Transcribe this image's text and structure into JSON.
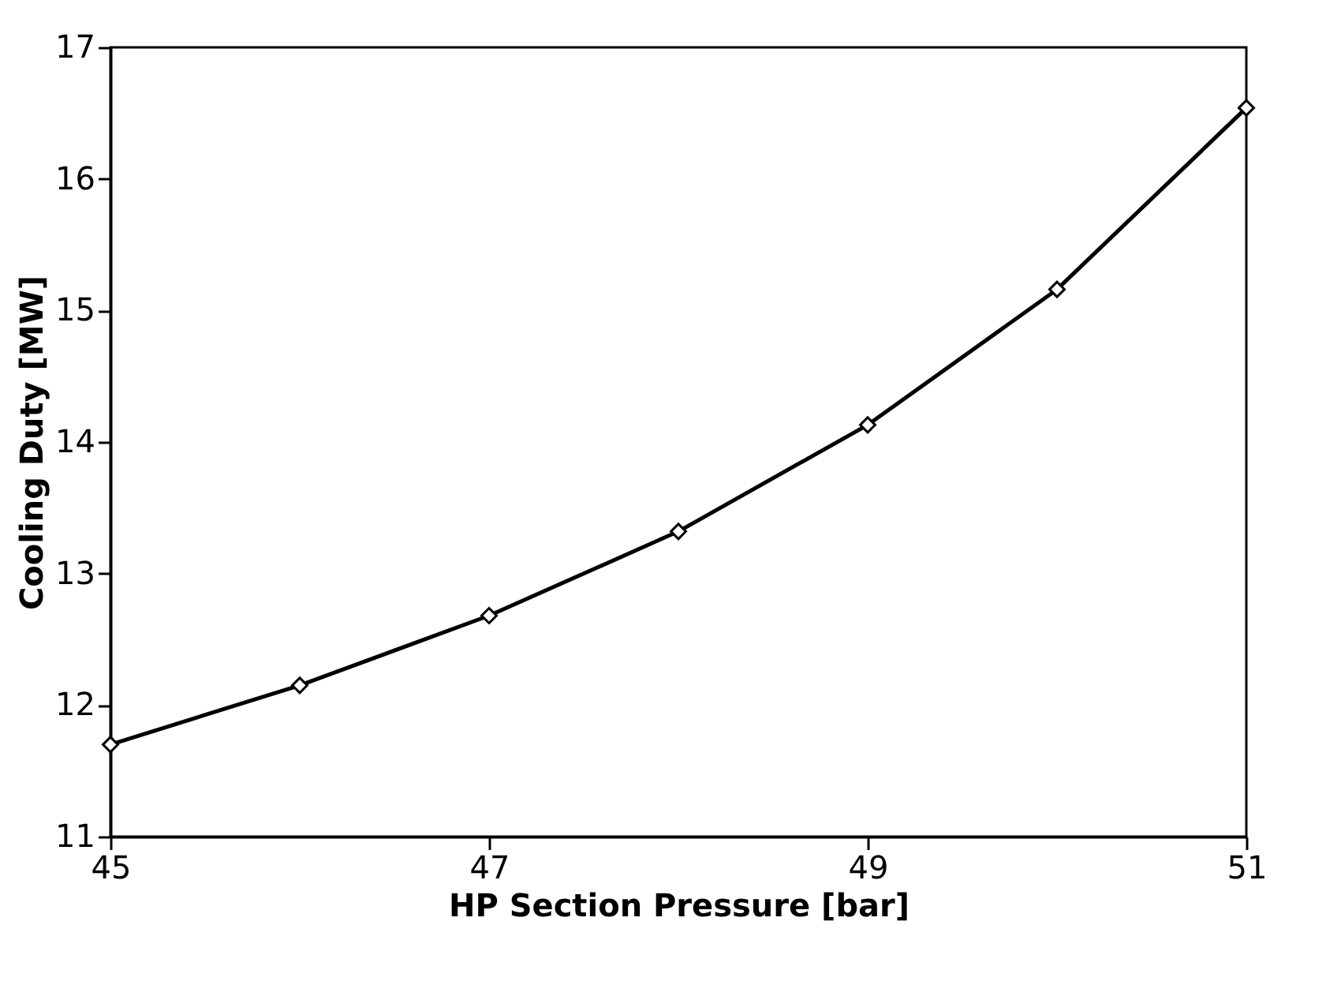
{
  "chart_data": {
    "type": "line",
    "xlabel": "HP Section Pressure [bar]",
    "ylabel": "Cooling Duty [MW]",
    "x": [
      45,
      46,
      47,
      48,
      49,
      50,
      51
    ],
    "series": [
      {
        "color": "#000000",
        "values": [
          11.7,
          12.15,
          12.68,
          13.32,
          14.13,
          15.16,
          16.54
        ]
      }
    ],
    "xlim": [
      45,
      51
    ],
    "xticks": [
      45,
      47,
      49,
      51
    ],
    "ylim": [
      11,
      17
    ],
    "yticks": [
      11,
      12,
      13,
      14,
      15,
      16,
      17
    ],
    "grid": false,
    "legend": false,
    "marker": "diamond",
    "line_style": "solid"
  }
}
